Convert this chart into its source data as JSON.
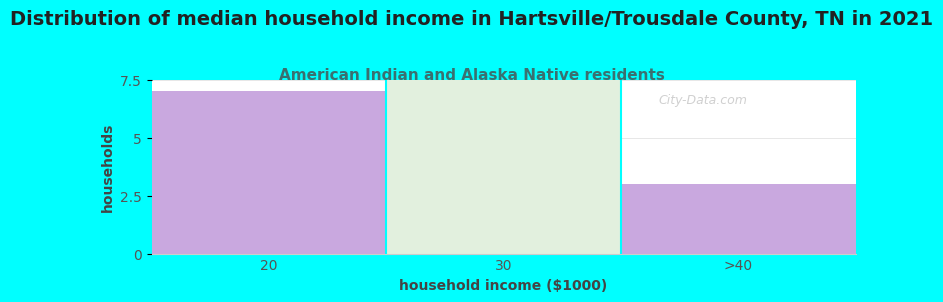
{
  "title": "Distribution of median household income in Hartsville/Trousdale County, TN in 2021",
  "subtitle": "American Indian and Alaska Native residents",
  "xlabel": "household income ($1000)",
  "ylabel": "households",
  "categories": [
    "20",
    "30",
    ">40"
  ],
  "values": [
    7.0,
    7.5,
    3.0
  ],
  "bar_colors": [
    "#C9A8DF",
    "#E2F0DE",
    "#C9A8DF"
  ],
  "background_color": "#00FFFF",
  "plot_bg_color": "#FFFFFF",
  "ylim": [
    0,
    7.5
  ],
  "yticks": [
    0,
    2.5,
    5,
    7.5
  ],
  "title_fontsize": 14,
  "subtitle_fontsize": 11,
  "subtitle_color": "#3A7070",
  "axis_label_fontsize": 10,
  "tick_label_fontsize": 10,
  "watermark": "City-Data.com"
}
